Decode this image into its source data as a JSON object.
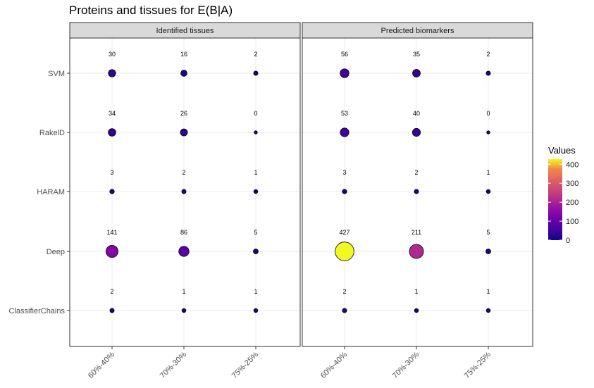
{
  "chart_data": {
    "type": "scatter",
    "title": "Proteins and tissues for E(B|A)",
    "categories": [
      "60%-40%",
      "70%-30%",
      "75%-25%"
    ],
    "methods": [
      "SVM",
      "RakelD",
      "HARAM",
      "Deep",
      "ClassifierChains"
    ],
    "panels": [
      {
        "name": "Identified tissues",
        "values": {
          "SVM": [
            30,
            16,
            2
          ],
          "RakelD": [
            34,
            26,
            0
          ],
          "HARAM": [
            3,
            2,
            1
          ],
          "Deep": [
            141,
            86,
            5
          ],
          "ClassifierChains": [
            2,
            1,
            1
          ]
        }
      },
      {
        "name": "Predicted biomarkers",
        "values": {
          "SVM": [
            56,
            35,
            2
          ],
          "RakelD": [
            53,
            40,
            0
          ],
          "HARAM": [
            3,
            2,
            1
          ],
          "Deep": [
            427,
            211,
            5
          ],
          "ClassifierChains": [
            2,
            1,
            1
          ]
        }
      }
    ],
    "legend": {
      "title": "Values",
      "ticks": [
        0,
        100,
        200,
        300,
        400
      ],
      "range": [
        0,
        427
      ],
      "colormap": "plasma",
      "placement": "right"
    },
    "grid": true
  }
}
